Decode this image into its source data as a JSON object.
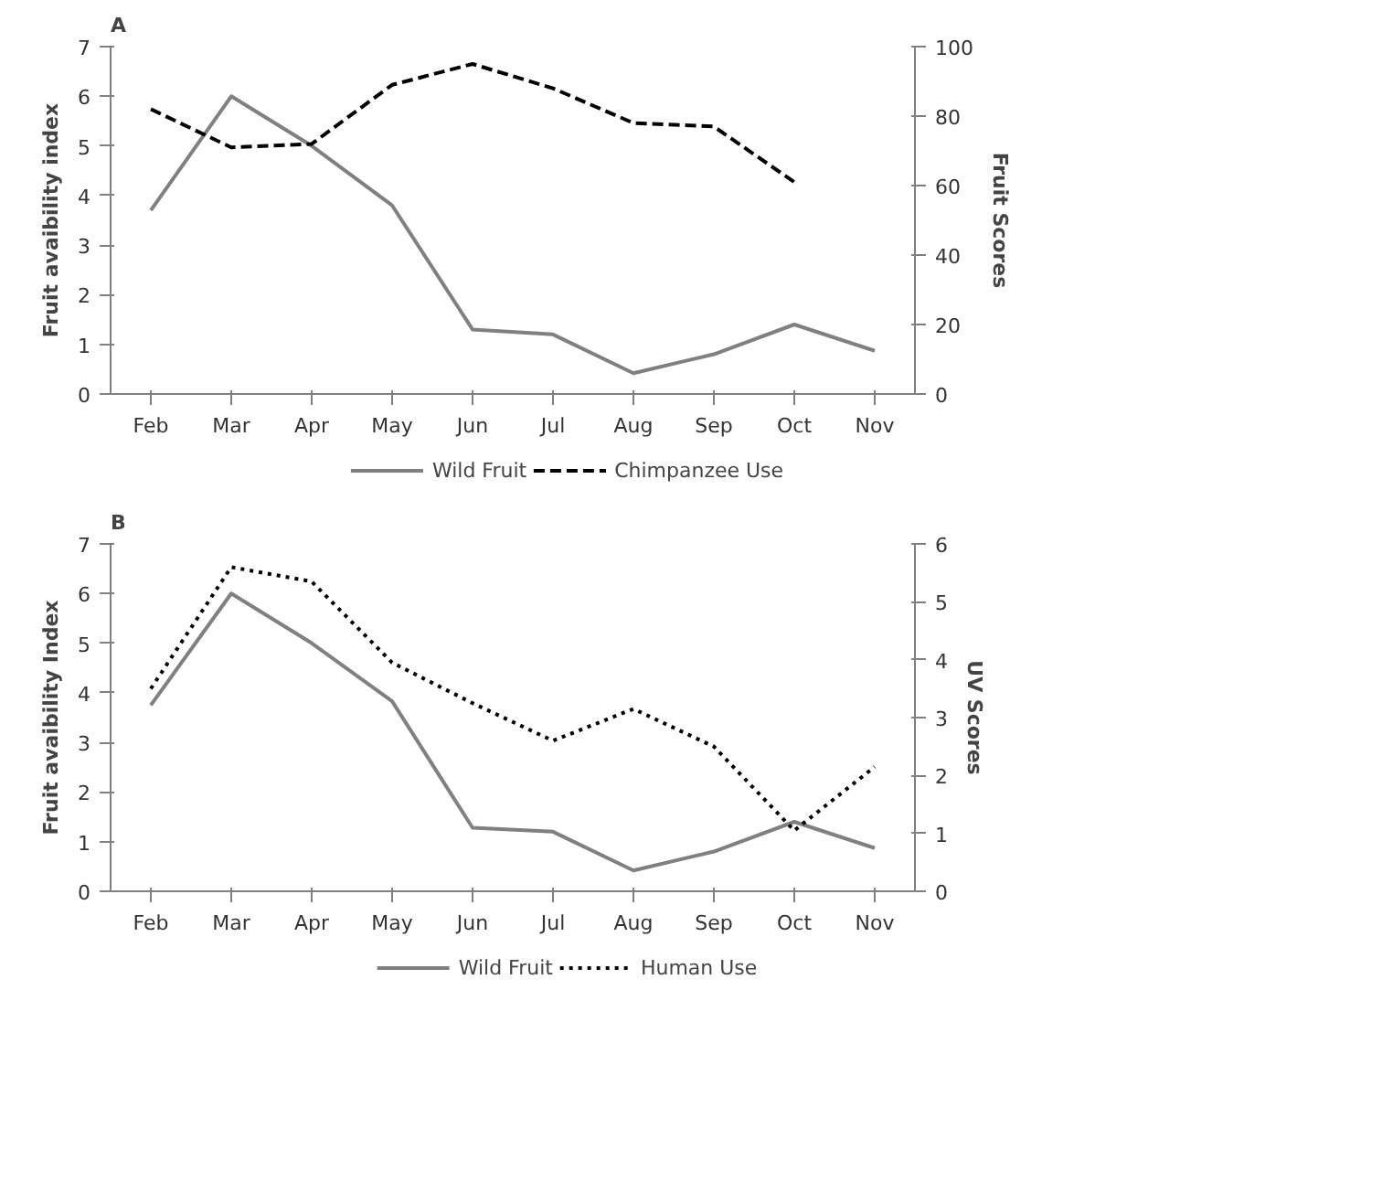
{
  "chart_data": [
    {
      "type": "line",
      "title": "A",
      "ylabel": "Fruit avaibility index",
      "y2label": "Fruit Scores",
      "categories": [
        "Feb",
        "Mar",
        "Apr",
        "May",
        "Jun",
        "Jul",
        "Aug",
        "Sep",
        "Oct",
        "Nov"
      ],
      "ylim": [
        0,
        7
      ],
      "yticks": [
        0,
        1,
        2,
        3,
        4,
        5,
        6,
        7
      ],
      "y2lim": [
        0,
        100
      ],
      "y2ticks": [
        0,
        20,
        40,
        60,
        80,
        100
      ],
      "grid": false,
      "legend": "bottom",
      "marker": "none",
      "series": [
        {
          "name": "Wild Fruit",
          "color": "#808080",
          "line_style": "solid",
          "values": [
            3.7,
            6.0,
            5.0,
            3.8,
            1.3,
            1.2,
            0.42,
            0.8,
            1.4,
            0.87
          ]
        },
        {
          "name": "Chimpanzee Use",
          "color": "#000000",
          "line_style": "dashed",
          "axis": "y2",
          "values": [
            82,
            71,
            72,
            89,
            95,
            88,
            78,
            77,
            61,
            null
          ]
        }
      ]
    },
    {
      "type": "line",
      "title": "B",
      "ylabel": "Fruit avaibility Index",
      "y2label": "UV Scores",
      "categories": [
        "Feb",
        "Mar",
        "Apr",
        "May",
        "Jun",
        "Jul",
        "Aug",
        "Sep",
        "Oct",
        "Nov"
      ],
      "ylim": [
        0,
        7
      ],
      "yticks": [
        0,
        1,
        2,
        3,
        4,
        5,
        6,
        7
      ],
      "y2lim": [
        0,
        6
      ],
      "y2ticks": [
        0,
        1,
        2,
        3,
        4,
        5,
        6
      ],
      "grid": false,
      "legend": "bottom",
      "marker": "none",
      "series": [
        {
          "name": "Wild Fruit",
          "color": "#808080",
          "line_style": "solid",
          "values": [
            3.75,
            6.0,
            5.0,
            3.83,
            1.28,
            1.2,
            0.42,
            0.8,
            1.4,
            0.87
          ]
        },
        {
          "name": "Human Use",
          "color": "#000000",
          "line_style": "dotted",
          "axis": "y2",
          "values": [
            3.5,
            5.6,
            5.35,
            3.95,
            3.25,
            2.6,
            3.15,
            2.5,
            1.05,
            2.15
          ]
        }
      ]
    }
  ]
}
